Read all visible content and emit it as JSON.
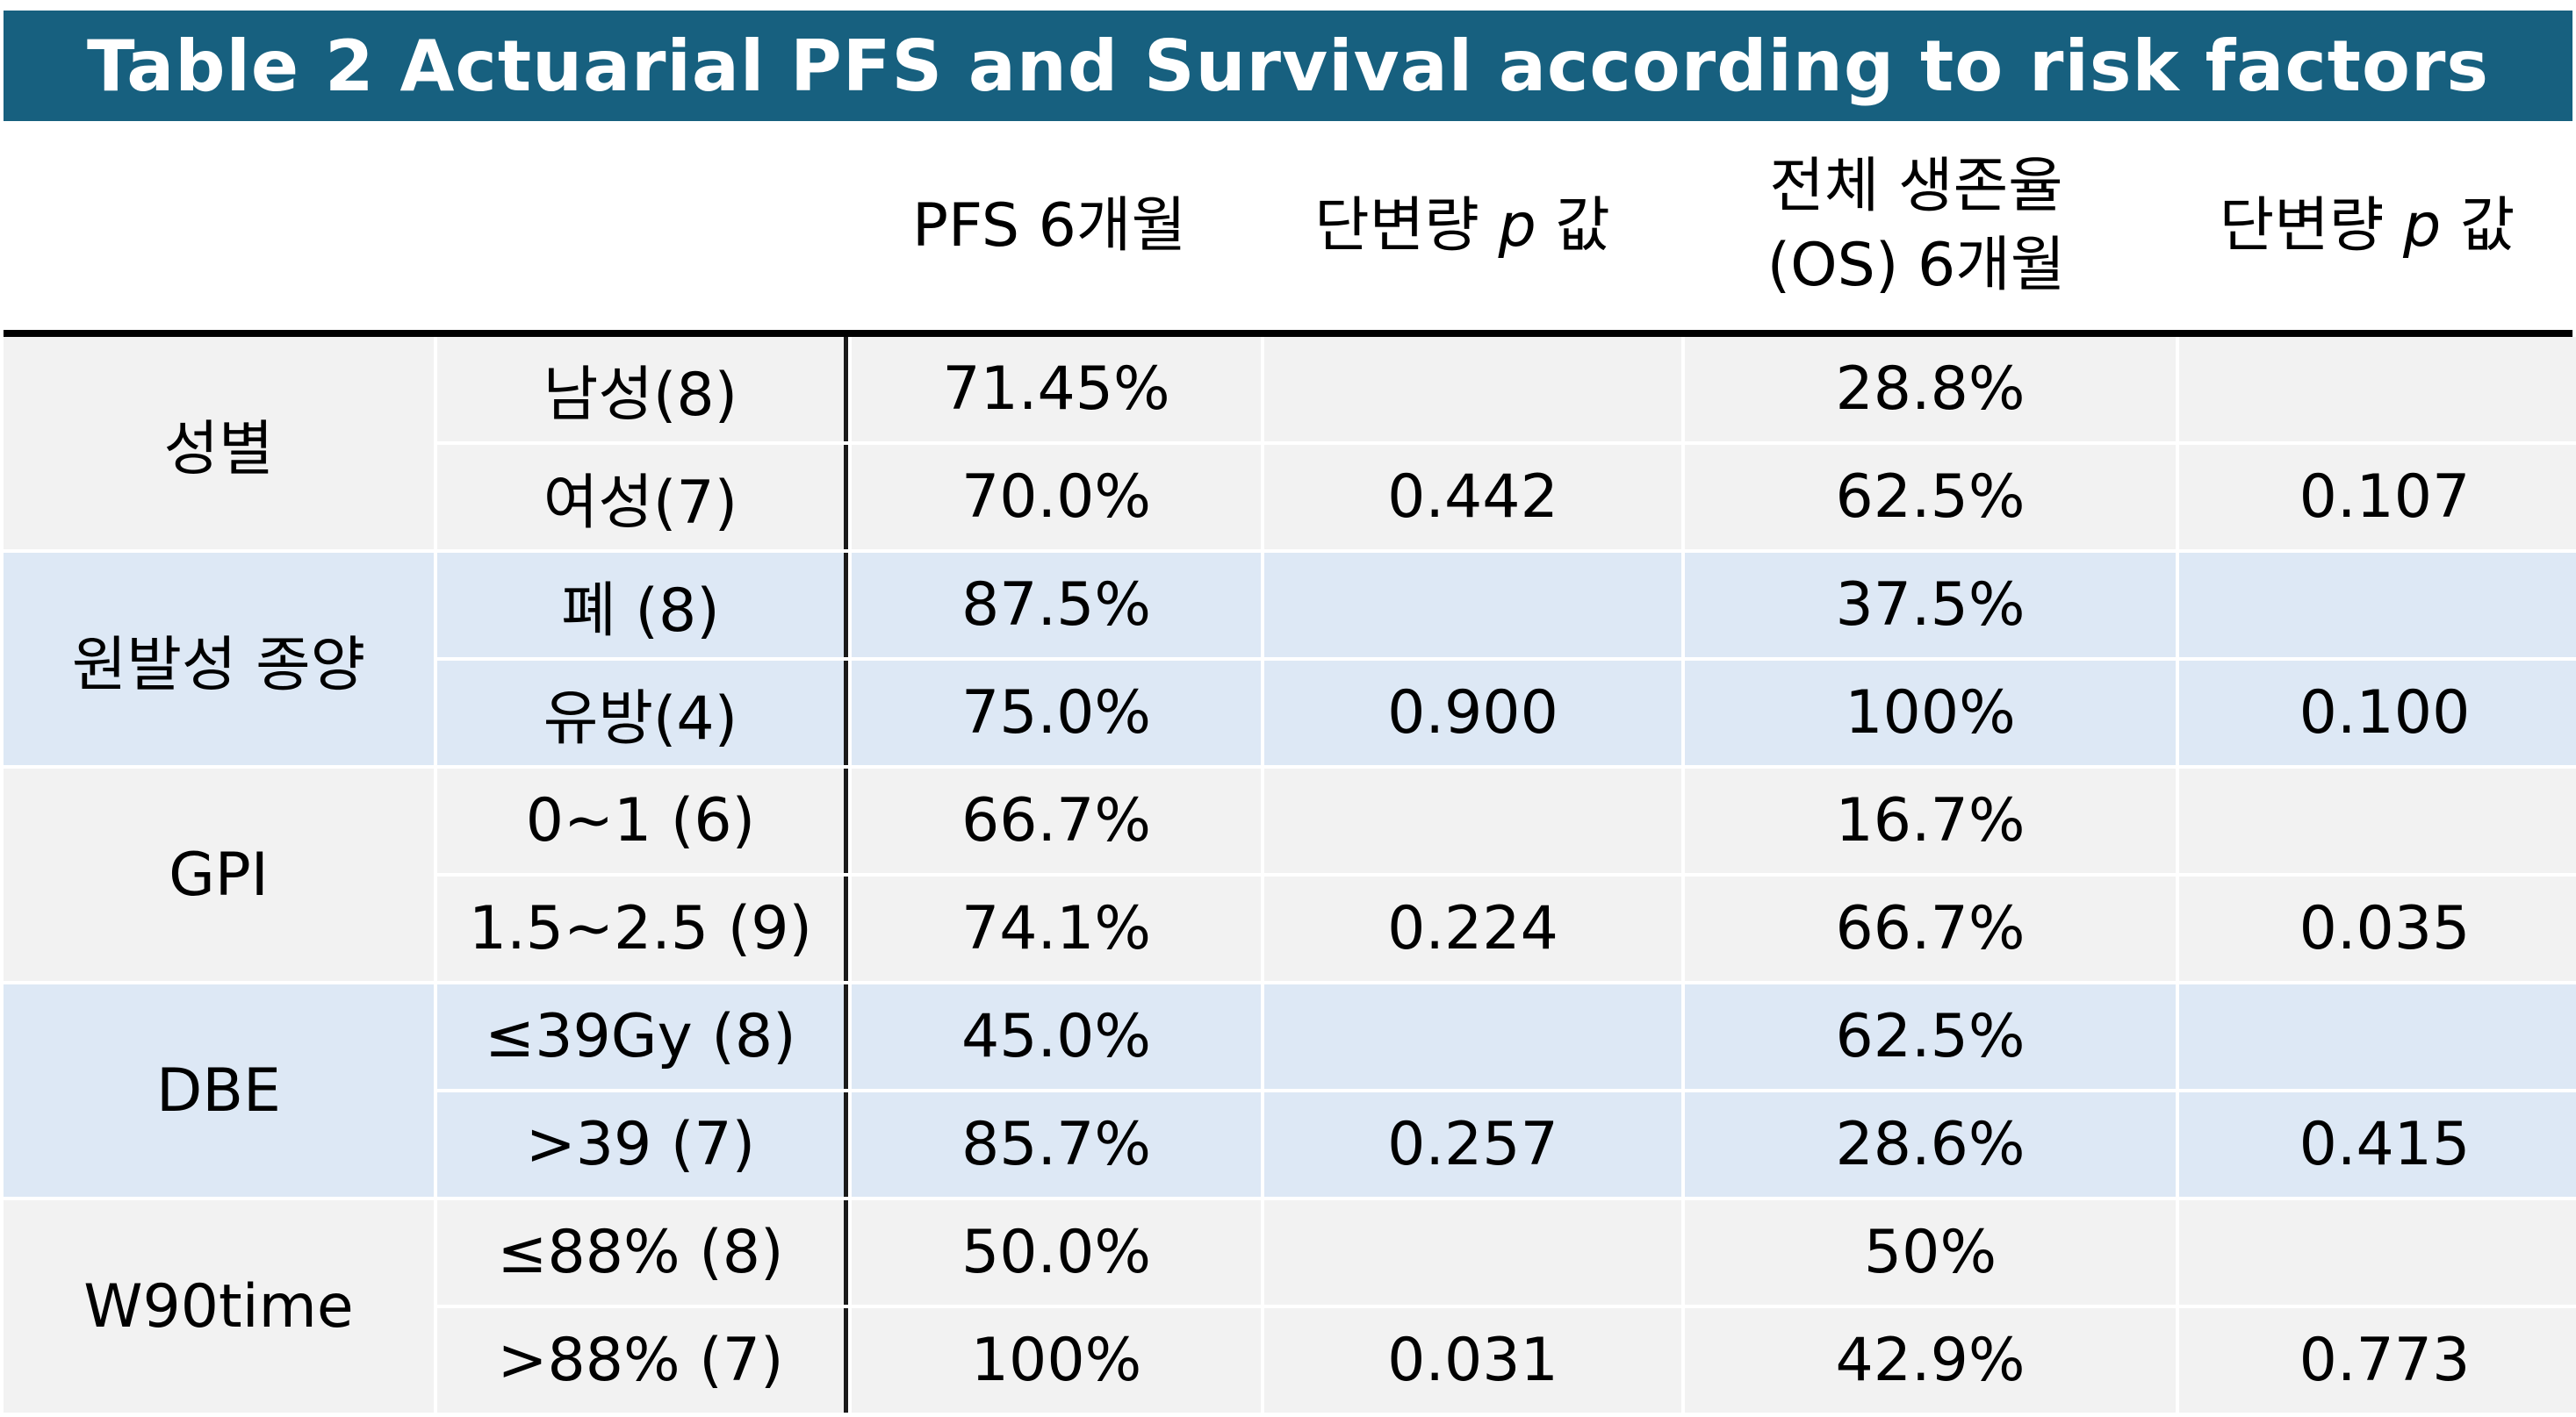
{
  "title": "Table 2 Actuarial PFS and Survival according to risk factors",
  "headers": {
    "pfs": "PFS 6개월",
    "p1_prefix": "단변량",
    "p1_var": "p",
    "p1_suffix": "값",
    "os_line1": "전체 생존율",
    "os_line2": "(OS) 6개월",
    "p2_prefix": "단변량",
    "p2_var": "p",
    "p2_suffix": "값"
  },
  "groups": [
    {
      "label": "성별",
      "rows": [
        {
          "sub": "남성(8)",
          "pfs": "71.45%",
          "p1": "",
          "os": "28.8%",
          "p2": ""
        },
        {
          "sub": "여성(7)",
          "pfs": "70.0%",
          "p1": "0.442",
          "os": "62.5%",
          "p2": "0.107"
        }
      ]
    },
    {
      "label": "원발성 종양",
      "rows": [
        {
          "sub": "폐 (8)",
          "pfs": "87.5%",
          "p1": "",
          "os": "37.5%",
          "p2": ""
        },
        {
          "sub": "유방(4)",
          "pfs": "75.0%",
          "p1": "0.900",
          "os": "100%",
          "p2": "0.100"
        }
      ]
    },
    {
      "label": "GPI",
      "rows": [
        {
          "sub": "0~1 (6)",
          "pfs": "66.7%",
          "p1": "",
          "os": "16.7%",
          "p2": ""
        },
        {
          "sub": "1.5~2.5 (9)",
          "pfs": "74.1%",
          "p1": "0.224",
          "os": "66.7%",
          "p2": "0.035"
        }
      ]
    },
    {
      "label": "DBE",
      "rows": [
        {
          "sub": "≤39Gy (8)",
          "pfs": "45.0%",
          "p1": "",
          "os": "62.5%",
          "p2": ""
        },
        {
          "sub": ">39 (7)",
          "pfs": "85.7%",
          "p1": "0.257",
          "os": "28.6%",
          "p2": "0.415"
        }
      ]
    },
    {
      "label": "W90time",
      "rows": [
        {
          "sub": "≤88% (8)",
          "pfs": "50.0%",
          "p1": "",
          "os": "50%",
          "p2": ""
        },
        {
          "sub": ">88% (7)",
          "pfs": "100%",
          "p1": "0.031",
          "os": "42.9%",
          "p2": "0.773"
        }
      ]
    }
  ],
  "colors": {
    "title_bg": "#17607f",
    "band_gray": "#f2f2f2",
    "band_blue": "#dde8f5"
  }
}
